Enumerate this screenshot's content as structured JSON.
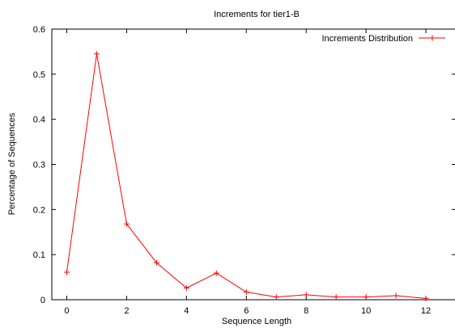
{
  "chart_data": {
    "type": "line",
    "title": "Increments for tier1-B",
    "xlabel": "Sequence Length",
    "ylabel": "Percentage of Sequences",
    "xlim": [
      -0.5,
      13
    ],
    "ylim": [
      0,
      0.6
    ],
    "xticks": [
      0,
      2,
      4,
      6,
      8,
      10,
      12
    ],
    "yticks": [
      0,
      0.1,
      0.2,
      0.3,
      0.4,
      0.5,
      0.6
    ],
    "grid": false,
    "legend_position": "top-right",
    "series": [
      {
        "name": "Increments Distribution",
        "color": "#ff0000",
        "marker": "plus",
        "x": [
          0,
          1,
          2,
          3,
          4,
          5,
          6,
          7,
          8,
          9,
          10,
          11,
          12
        ],
        "y": [
          0.061,
          0.545,
          0.168,
          0.082,
          0.026,
          0.059,
          0.017,
          0.006,
          0.011,
          0.006,
          0.006,
          0.009,
          0.003
        ]
      }
    ]
  }
}
